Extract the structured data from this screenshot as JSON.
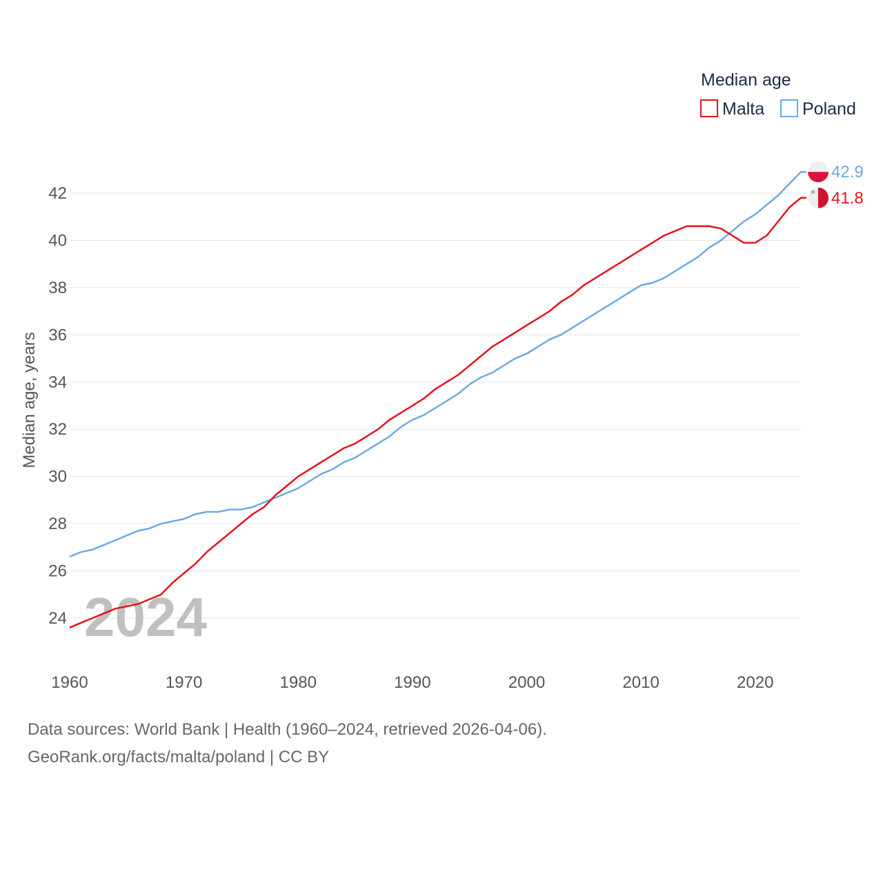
{
  "chart_data": {
    "type": "line",
    "title": "Median age",
    "ylabel": "Median age, years",
    "xlabel": "",
    "ylim": [
      23.0,
      43.2
    ],
    "xlim": [
      1960,
      2024
    ],
    "yticks": [
      24,
      26,
      28,
      30,
      32,
      34,
      36,
      38,
      40,
      42
    ],
    "xticks": [
      1960,
      1970,
      1980,
      1990,
      2000,
      2010,
      2020
    ],
    "grid": true,
    "legend": "top-right",
    "current_year": "2024",
    "x": [
      1960,
      1961,
      1962,
      1963,
      1964,
      1965,
      1966,
      1967,
      1968,
      1969,
      1970,
      1971,
      1972,
      1973,
      1974,
      1975,
      1976,
      1977,
      1978,
      1979,
      1980,
      1981,
      1982,
      1983,
      1984,
      1985,
      1986,
      1987,
      1988,
      1989,
      1990,
      1991,
      1992,
      1993,
      1994,
      1995,
      1996,
      1997,
      1998,
      1999,
      2000,
      2001,
      2002,
      2003,
      2004,
      2005,
      2006,
      2007,
      2008,
      2009,
      2010,
      2011,
      2012,
      2013,
      2014,
      2015,
      2016,
      2017,
      2018,
      2019,
      2020,
      2021,
      2022,
      2023,
      2024
    ],
    "series": [
      {
        "name": "Malta",
        "color": "#e8101c",
        "flag": "malta-flag",
        "end_label": "41.8",
        "values": [
          23.6,
          23.8,
          24.0,
          24.2,
          24.4,
          24.5,
          24.6,
          24.8,
          25.0,
          25.5,
          25.9,
          26.3,
          26.8,
          27.2,
          27.6,
          28.0,
          28.4,
          28.7,
          29.2,
          29.6,
          30.0,
          30.3,
          30.6,
          30.9,
          31.2,
          31.4,
          31.7,
          32.0,
          32.4,
          32.7,
          33.0,
          33.3,
          33.7,
          34.0,
          34.3,
          34.7,
          35.1,
          35.5,
          35.8,
          36.1,
          36.4,
          36.7,
          37.0,
          37.4,
          37.7,
          38.1,
          38.4,
          38.7,
          39.0,
          39.3,
          39.6,
          39.9,
          40.2,
          40.4,
          40.6,
          40.6,
          40.6,
          40.5,
          40.2,
          39.9,
          39.9,
          40.2,
          40.8,
          41.4,
          41.8
        ]
      },
      {
        "name": "Poland",
        "color": "#6aaae4",
        "flag": "poland-flag",
        "end_label": "42.9",
        "values": [
          26.6,
          26.8,
          26.9,
          27.1,
          27.3,
          27.5,
          27.7,
          27.8,
          28.0,
          28.1,
          28.2,
          28.4,
          28.5,
          28.5,
          28.6,
          28.6,
          28.7,
          28.9,
          29.1,
          29.3,
          29.5,
          29.8,
          30.1,
          30.3,
          30.6,
          30.8,
          31.1,
          31.4,
          31.7,
          32.1,
          32.4,
          32.6,
          32.9,
          33.2,
          33.5,
          33.9,
          34.2,
          34.4,
          34.7,
          35.0,
          35.2,
          35.5,
          35.8,
          36.0,
          36.3,
          36.6,
          36.9,
          37.2,
          37.5,
          37.8,
          38.1,
          38.2,
          38.4,
          38.7,
          39.0,
          39.3,
          39.7,
          40.0,
          40.4,
          40.8,
          41.1,
          41.5,
          41.9,
          42.4,
          42.9
        ]
      }
    ]
  },
  "footer": {
    "source": "Data sources: World Bank | Health (1960–2024, retrieved 2026-04-06).",
    "credit": "GeoRank.org/facts/malta/poland | CC BY"
  }
}
